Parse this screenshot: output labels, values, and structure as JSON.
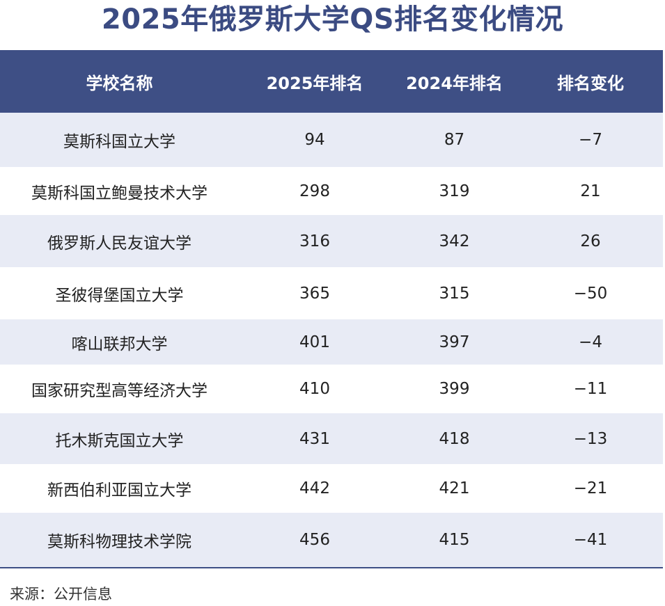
{
  "chart_data": {
    "type": "table",
    "title": "2025年俄罗斯大学QS排名变化情况",
    "columns": [
      "学校名称",
      "2025年排名",
      "2024年排名",
      "排名变化"
    ],
    "rows": [
      [
        "莫斯科国立大学",
        "94",
        "87",
        "−7"
      ],
      [
        "莫斯科国立鲍曼技术大学",
        "298",
        "319",
        "21"
      ],
      [
        "俄罗斯人民友谊大学",
        "316",
        "342",
        "26"
      ],
      [
        "圣彼得堡国立大学",
        "365",
        "315",
        "−50"
      ],
      [
        "喀山联邦大学",
        "401",
        "397",
        "−4"
      ],
      [
        "国家研究型高等经济大学",
        "410",
        "399",
        "−11"
      ],
      [
        "托木斯克国立大学",
        "431",
        "418",
        "−13"
      ],
      [
        "新西伯利亚国立大学",
        "442",
        "421",
        "−21"
      ],
      [
        "莫斯科物理技术学院",
        "456",
        "415",
        "−41"
      ]
    ]
  },
  "source": "来源：公开信息",
  "colors": {
    "header_bg": "#3e4f85",
    "title": "#3b4b82",
    "stripe": "#e8ebf5"
  }
}
